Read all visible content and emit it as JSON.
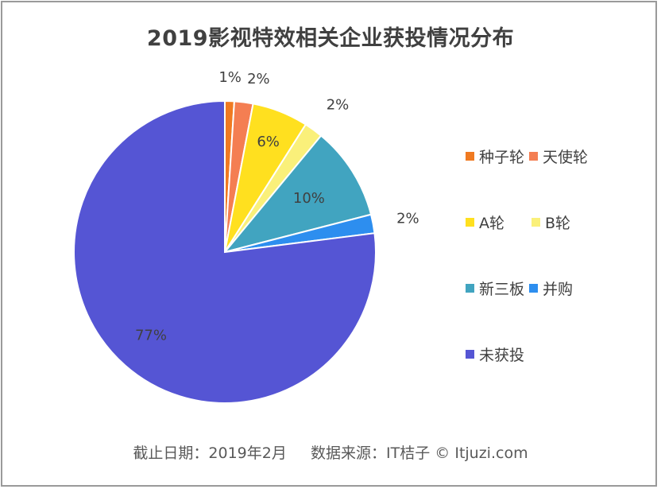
{
  "chart_data": {
    "type": "pie",
    "title": "2019影视特效相关企业获投情况分布",
    "categories": [
      "种子轮",
      "天使轮",
      "A轮",
      "B轮",
      "新三板",
      "并购",
      "未获投"
    ],
    "values": [
      1,
      2,
      6,
      2,
      10,
      2,
      77
    ],
    "value_labels": [
      "1%",
      "2%",
      "6%",
      "2%",
      "10%",
      "2%",
      "77%"
    ],
    "colors": [
      "#F07A21",
      "#F47E52",
      "#FFE01F",
      "#FAF07A",
      "#41A4C0",
      "#2D8EEF",
      "#5555D4"
    ],
    "legend": "right",
    "start_angle": "12 o'clock, clockwise"
  },
  "footer": {
    "text": "截止日期：2019年2月     数据来源：IT桔子 © Itjuzi.com"
  }
}
